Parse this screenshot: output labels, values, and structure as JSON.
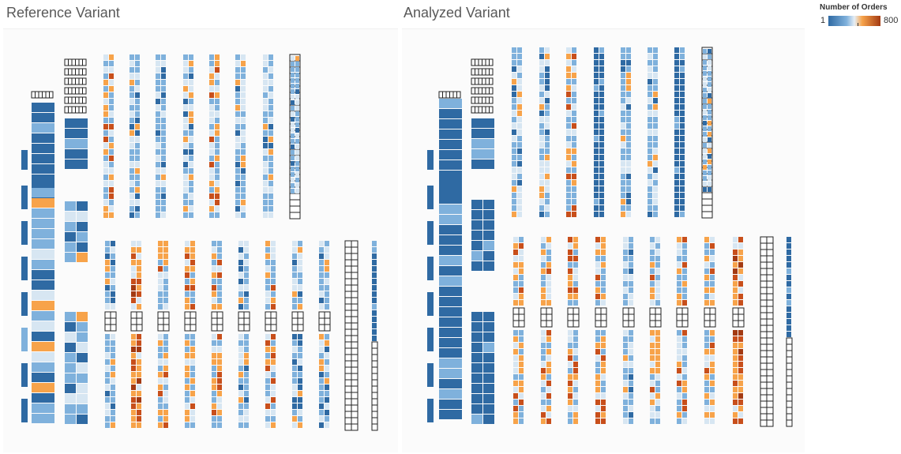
{
  "panels": {
    "left_title": "Reference Variant",
    "right_title": "Analyzed Variant"
  },
  "legend": {
    "title": "Number of Orders",
    "min_label": "1",
    "max_label": "800",
    "colors": [
      "#2f6aa3",
      "#7fb1dc",
      "#d7e6f2",
      "#f7a34a",
      "#c84f1b",
      "#a33a12"
    ]
  },
  "chart_data": [
    {
      "type": "heatmap",
      "title": "Reference Variant",
      "legend_title": "Number of Orders",
      "value_range": [
        1,
        800
      ],
      "description_of_layout": "warehouse shelf heatmap",
      "racks": {
        "upper_count": 8,
        "lower_count": 11
      }
    },
    {
      "type": "heatmap",
      "title": "Analyzed Variant",
      "legend_title": "Number of Orders",
      "value_range": [
        1,
        800
      ],
      "racks": {
        "upper_count": 8,
        "lower_count": 11
      }
    }
  ]
}
